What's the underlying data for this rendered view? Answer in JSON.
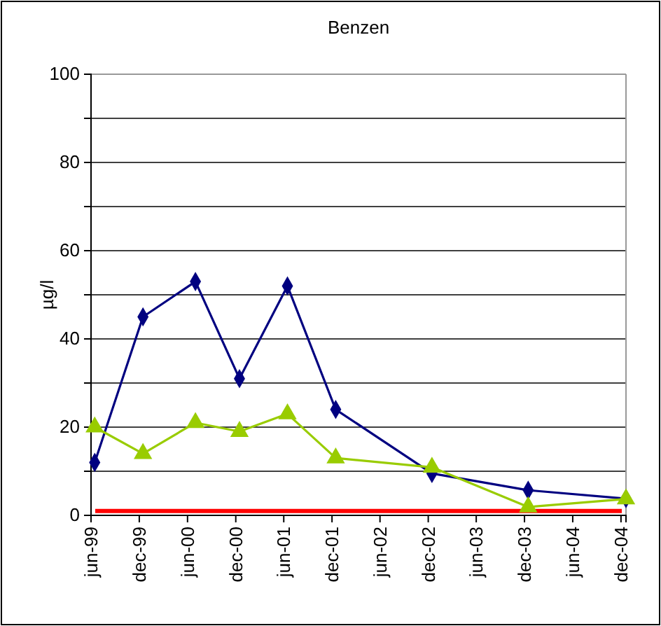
{
  "chart_data": {
    "type": "line",
    "title": "Benzen",
    "ylabel": "µg/l",
    "xlim": [
      "1999-06-01",
      "2004-12-20"
    ],
    "xticks": [
      {
        "value": "1999-06",
        "label": "jun-99"
      },
      {
        "value": "1999-12",
        "label": "dec-99"
      },
      {
        "value": "2000-06",
        "label": "jun-00"
      },
      {
        "value": "2000-12",
        "label": "dec-00"
      },
      {
        "value": "2001-06",
        "label": "jun-01"
      },
      {
        "value": "2001-12",
        "label": "dec-01"
      },
      {
        "value": "2002-06",
        "label": "jun-02"
      },
      {
        "value": "2002-12",
        "label": "dec-02"
      },
      {
        "value": "2003-06",
        "label": "jun-03"
      },
      {
        "value": "2003-12",
        "label": "dec-03"
      },
      {
        "value": "2004-06",
        "label": "jun-04"
      },
      {
        "value": "2004-12",
        "label": "dec-04"
      }
    ],
    "ylim": [
      0,
      100
    ],
    "yticks": [
      0,
      {
        "value": 10,
        "label": null
      },
      20,
      {
        "value": 30,
        "label": null
      },
      40,
      {
        "value": 50,
        "label": null
      },
      60,
      {
        "value": 70,
        "label": null
      },
      80,
      {
        "value": 90,
        "label": null
      },
      100
    ],
    "grid": "y",
    "x": [
      "1999-06-15",
      "1999-12-15",
      "2000-07-01",
      "2000-12-15",
      "2001-06-15",
      "2001-12-15",
      "2002-12-15",
      "2003-12-15",
      "2004-12-20"
    ],
    "series": [
      {
        "color": "#000080",
        "marker": "diamond",
        "values": [
          12,
          45,
          53,
          31,
          52,
          24,
          9.5,
          5.7,
          3.8
        ]
      },
      {
        "color": "#99cc00",
        "marker": "triangle",
        "values": [
          20,
          14,
          21,
          19,
          23,
          13,
          10.9,
          1.9,
          3.7
        ]
      }
    ],
    "ref_lines": [
      {
        "axis": "y",
        "value": 1,
        "color": "#ff0000",
        "line_style": "solid"
      }
    ]
  }
}
